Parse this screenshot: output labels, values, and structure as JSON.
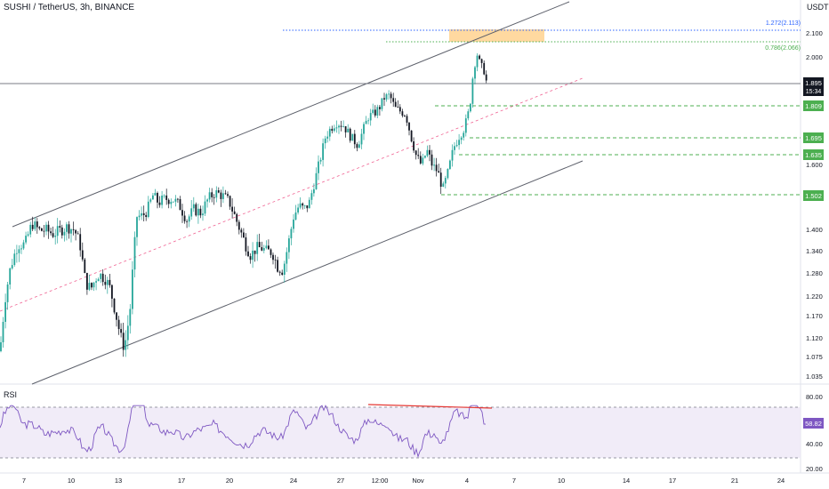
{
  "header": {
    "symbol_title": "SUSHI / TetherUS, 3h, BINANCE",
    "currency": "USDT"
  },
  "price_axis": {
    "ticks": [
      "2.100",
      "2.000",
      "1.600",
      "1.400",
      "1.340",
      "1.280",
      "1.220",
      "1.170",
      "1.120",
      "1.075",
      "1.035"
    ]
  },
  "fib_labels": {
    "level_1272": "1.272(2.113)",
    "level_0786": "0.786(2.066)"
  },
  "current_price": {
    "price": "1.895",
    "countdown": "15:34"
  },
  "level_badges": [
    "1.809",
    "1.695",
    "1.635",
    "1.502"
  ],
  "rsi": {
    "label": "RSI",
    "value": "58.82",
    "ticks": [
      "80.00",
      "40.00",
      "20.00"
    ]
  },
  "time_axis": {
    "ticks": [
      "7",
      "10",
      "13",
      "17",
      "20",
      "24",
      "27",
      "12:00",
      "Nov",
      "4",
      "7",
      "10",
      "14",
      "17",
      "21",
      "24"
    ]
  },
  "colors": {
    "bull": "#26a69a",
    "bear": "#131722",
    "fib_1272": "#2962ff",
    "fib_0786": "#4caf50",
    "highlight_zone": "#ffcc80",
    "rsi_line": "#7e57c2",
    "rsi_band": "#ede7f6",
    "divergence": "#e53935",
    "rsi_badge": "#7e57c2",
    "level_badge": "#4caf50"
  },
  "chart_data": {
    "type": "candlestick",
    "symbol": "SUSHI / TetherUS",
    "interval": "3h",
    "exchange": "BINANCE",
    "ylim": [
      1.03,
      2.15
    ],
    "current_price": 1.895,
    "horizontal_levels": [
      1.809,
      1.695,
      1.635,
      1.502
    ],
    "fibonacci": [
      {
        "ratio": 1.272,
        "price": 2.113
      },
      {
        "ratio": 0.786,
        "price": 2.066
      }
    ],
    "price_path": [
      [
        0,
        1.09
      ],
      [
        6,
        1.22
      ],
      [
        12,
        1.3
      ],
      [
        20,
        1.36
      ],
      [
        28,
        1.36
      ],
      [
        36,
        1.42
      ],
      [
        44,
        1.4
      ],
      [
        52,
        1.4
      ],
      [
        60,
        1.39
      ],
      [
        68,
        1.4
      ],
      [
        76,
        1.41
      ],
      [
        84,
        1.4
      ],
      [
        90,
        1.36
      ],
      [
        96,
        1.26
      ],
      [
        102,
        1.24
      ],
      [
        110,
        1.28
      ],
      [
        118,
        1.27
      ],
      [
        124,
        1.24
      ],
      [
        130,
        1.18
      ],
      [
        136,
        1.12
      ],
      [
        140,
        1.1
      ],
      [
        146,
        1.18
      ],
      [
        150,
        1.32
      ],
      [
        154,
        1.44
      ],
      [
        160,
        1.44
      ],
      [
        166,
        1.46
      ],
      [
        172,
        1.5
      ],
      [
        178,
        1.48
      ],
      [
        186,
        1.49
      ],
      [
        194,
        1.49
      ],
      [
        202,
        1.47
      ],
      [
        210,
        1.43
      ],
      [
        218,
        1.46
      ],
      [
        226,
        1.45
      ],
      [
        234,
        1.49
      ],
      [
        242,
        1.51
      ],
      [
        250,
        1.5
      ],
      [
        258,
        1.48
      ],
      [
        264,
        1.44
      ],
      [
        270,
        1.4
      ],
      [
        276,
        1.36
      ],
      [
        282,
        1.33
      ],
      [
        288,
        1.35
      ],
      [
        294,
        1.35
      ],
      [
        300,
        1.34
      ],
      [
        306,
        1.34
      ],
      [
        312,
        1.3
      ],
      [
        318,
        1.29
      ],
      [
        324,
        1.36
      ],
      [
        330,
        1.44
      ],
      [
        336,
        1.47
      ],
      [
        342,
        1.46
      ],
      [
        348,
        1.48
      ],
      [
        354,
        1.55
      ],
      [
        360,
        1.62
      ],
      [
        366,
        1.7
      ],
      [
        372,
        1.73
      ],
      [
        378,
        1.75
      ],
      [
        386,
        1.74
      ],
      [
        394,
        1.7
      ],
      [
        402,
        1.67
      ],
      [
        408,
        1.72
      ],
      [
        414,
        1.77
      ],
      [
        420,
        1.78
      ],
      [
        426,
        1.8
      ],
      [
        432,
        1.84
      ],
      [
        438,
        1.85
      ],
      [
        444,
        1.8
      ],
      [
        450,
        1.79
      ],
      [
        456,
        1.78
      ],
      [
        462,
        1.7
      ],
      [
        468,
        1.63
      ],
      [
        474,
        1.6
      ],
      [
        480,
        1.65
      ],
      [
        486,
        1.6
      ],
      [
        492,
        1.58
      ],
      [
        498,
        1.52
      ],
      [
        504,
        1.58
      ],
      [
        510,
        1.66
      ],
      [
        516,
        1.7
      ],
      [
        522,
        1.73
      ],
      [
        528,
        1.8
      ],
      [
        532,
        1.94
      ],
      [
        536,
        2.02
      ],
      [
        540,
        1.97
      ],
      [
        544,
        1.95
      ],
      [
        547,
        1.9
      ]
    ],
    "rsi": {
      "value": 58.82,
      "overbought": 70,
      "oversold": 30,
      "ylim": [
        17,
        86
      ]
    }
  }
}
